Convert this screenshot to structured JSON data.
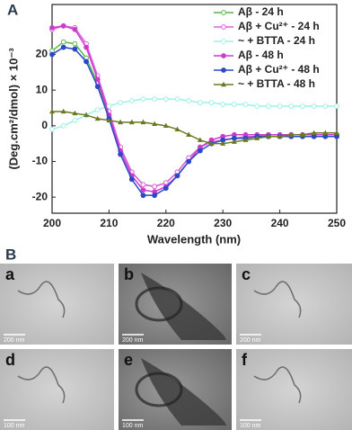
{
  "chart_data": {
    "type": "line",
    "panel_label": "A",
    "x_label": "Wavelength (nm)",
    "y_label": "(Deg.cm²/dmol) × 10⁻³",
    "x": [
      200,
      202,
      204,
      206,
      208,
      210,
      212,
      214,
      216,
      218,
      220,
      222,
      224,
      226,
      228,
      230,
      232,
      234,
      236,
      238,
      240,
      242,
      244,
      246,
      248,
      250
    ],
    "xlim": [
      200,
      250
    ],
    "xticks": [
      200,
      210,
      220,
      230,
      240,
      250
    ],
    "ylim": [
      -24.5,
      34
    ],
    "yticks": [
      -20,
      -10,
      0,
      10,
      20
    ],
    "legend": "upper right",
    "series": [
      {
        "name": "Aβ - 24 h",
        "color": "#55b84a",
        "marker": "open-circle",
        "values": [
          21,
          23.5,
          23,
          19,
          12,
          3,
          -6,
          -13,
          -16.5,
          -17,
          -16,
          -13,
          -9,
          -6,
          -4.5,
          -4,
          -3.5,
          -3,
          -3,
          -2.5,
          -2.5,
          -2.5,
          -2.5,
          -2.5,
          -2.5,
          -2.5
        ]
      },
      {
        "name": "Aβ + Cu²⁺ - 24 h",
        "color": "#e35de3",
        "marker": "open-circle",
        "values": [
          27,
          28,
          27.5,
          23,
          14,
          4,
          -6,
          -13,
          -16.5,
          -17,
          -16,
          -13,
          -9,
          -6,
          -4.5,
          -4,
          -3.5,
          -3,
          -3,
          -3,
          -3,
          -3,
          -3,
          -3,
          -3,
          -3
        ]
      },
      {
        "name": "~ + BTTA - 24 h",
        "color": "#9ef0e6",
        "marker": "open-circle",
        "values": [
          -1,
          0,
          1.5,
          3,
          4.5,
          5.5,
          6.5,
          7,
          7.5,
          7.5,
          7.5,
          7.5,
          7,
          6.5,
          6.5,
          6,
          6,
          6,
          5.5,
          5.5,
          5.5,
          5.5,
          5.5,
          5.5,
          5.5,
          5.5
        ]
      },
      {
        "name": "Aβ - 48 h",
        "color": "#cc3ccc",
        "marker": "filled-circle",
        "values": [
          27.5,
          28,
          27,
          22,
          13,
          3,
          -7,
          -14,
          -18,
          -18.5,
          -17,
          -14,
          -10,
          -6,
          -4,
          -3,
          -2.5,
          -2.5,
          -2.5,
          -2.5,
          -2.5,
          -2.5,
          -2.5,
          -2.5,
          -2.5,
          -2.5
        ]
      },
      {
        "name": "Aβ + Cu²⁺ - 48 h",
        "color": "#2a48c8",
        "marker": "filled-circle",
        "values": [
          20,
          22,
          21.5,
          18,
          11,
          2,
          -8,
          -15,
          -19.5,
          -19.5,
          -17.5,
          -14,
          -10,
          -7,
          -5,
          -4,
          -3.5,
          -3.5,
          -3,
          -3,
          -3,
          -3,
          -3,
          -3,
          -3,
          -3
        ]
      },
      {
        "name": "~ + BTTA - 48 h",
        "color": "#6b7a22",
        "marker": "triangle",
        "values": [
          4,
          4,
          3.5,
          3,
          2,
          1.5,
          1,
          1,
          1,
          0.5,
          0,
          -1,
          -2.5,
          -4,
          -5,
          -5,
          -4.5,
          -4,
          -3.5,
          -3,
          -3,
          -2.5,
          -2.5,
          -2,
          -2,
          -2
        ]
      }
    ]
  },
  "micrographs": {
    "panel_label": "B",
    "images": [
      {
        "label": "a",
        "scale_bar": "200 nm"
      },
      {
        "label": "b",
        "scale_bar": "200 nm"
      },
      {
        "label": "c",
        "scale_bar": "200 nm"
      },
      {
        "label": "d",
        "scale_bar": "100 nm"
      },
      {
        "label": "e",
        "scale_bar": "100 nm"
      },
      {
        "label": "f",
        "scale_bar": "100 nm"
      }
    ]
  }
}
